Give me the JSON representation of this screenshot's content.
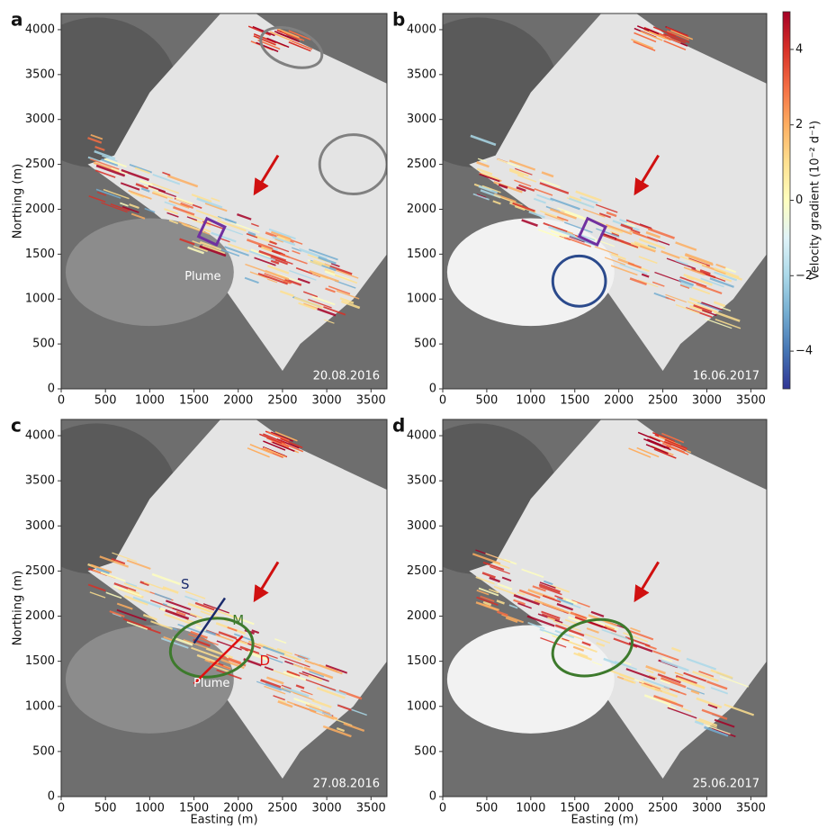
{
  "chart_data": [
    {
      "type": "image",
      "panel_label": "a",
      "date": "20.08.2016",
      "ylabel": "Northing (m)",
      "annotations": [
        "Plume"
      ],
      "xlim": [
        0,
        3680
      ],
      "ylim": [
        0,
        4180
      ],
      "xticks": [
        0,
        500,
        1000,
        1500,
        2000,
        2500,
        3000,
        3500
      ],
      "yticks": [
        0,
        500,
        1000,
        1500,
        2000,
        2500,
        3000,
        3500,
        4000
      ]
    },
    {
      "type": "image",
      "panel_label": "b",
      "date": "16.06.2017",
      "annotations": [],
      "xlim": [
        0,
        3680
      ],
      "ylim": [
        0,
        4180
      ],
      "xticks": [
        0,
        500,
        1000,
        1500,
        2000,
        2500,
        3000,
        3500
      ],
      "yticks": [
        0,
        500,
        1000,
        1500,
        2000,
        2500,
        3000,
        3500,
        4000
      ]
    },
    {
      "type": "image",
      "panel_label": "c",
      "date": "27.08.2016",
      "xlabel": "Easting (m)",
      "ylabel": "Northing (m)",
      "annotations": [
        "Plume",
        "S",
        "M",
        "D"
      ],
      "xlim": [
        0,
        3680
      ],
      "ylim": [
        0,
        4180
      ],
      "xticks": [
        0,
        500,
        1000,
        1500,
        2000,
        2500,
        3000,
        3500
      ],
      "yticks": [
        0,
        500,
        1000,
        1500,
        2000,
        2500,
        3000,
        3500,
        4000
      ]
    },
    {
      "type": "image",
      "panel_label": "d",
      "date": "25.06.2017",
      "xlabel": "Easting (m)",
      "annotations": [],
      "xlim": [
        0,
        3680
      ],
      "ylim": [
        0,
        4180
      ],
      "xticks": [
        0,
        500,
        1000,
        1500,
        2000,
        2500,
        3000,
        3500
      ],
      "yticks": [
        0,
        500,
        1000,
        1500,
        2000,
        2500,
        3000,
        3500,
        4000
      ]
    },
    {
      "type": "colorbar",
      "label": "Velocity gradient (10⁻² d⁻¹)",
      "ylim": [
        -5,
        5
      ],
      "yticks": [
        {
          "value": -4,
          "label": "−4"
        },
        {
          "value": -2,
          "label": "−2"
        },
        0,
        2,
        4
      ],
      "colors": [
        "#313695",
        "#4575b4",
        "#74add1",
        "#abd9e9",
        "#e0f3f8",
        "#ffffbf",
        "#fee090",
        "#fdae61",
        "#f46d43",
        "#d73027",
        "#a50026"
      ]
    }
  ]
}
